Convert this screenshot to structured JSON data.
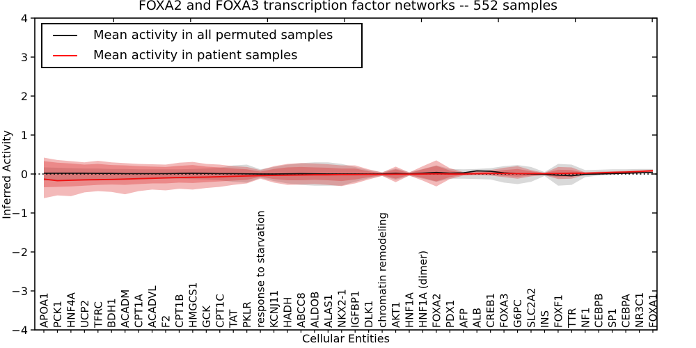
{
  "figure": {
    "title": "FOXA2 and FOXA3 transcription factor networks -- 552 samples",
    "xlabel": "Cellular Entities",
    "ylabel": "Inferred Activity",
    "legend": [
      {
        "label": "Mean activity in all permuted samples",
        "color": "#000000"
      },
      {
        "label": "Mean activity in patient samples",
        "color": "#ff0000"
      }
    ]
  },
  "chart_data": {
    "type": "line",
    "title": "FOXA2 and FOXA3 transcription factor networks -- 552 samples",
    "xlabel": "Cellular Entities",
    "ylabel": "Inferred Activity",
    "ylim": [
      -4,
      4
    ],
    "yticks": [
      4,
      3,
      2,
      1,
      0,
      -1,
      -2,
      -3,
      -4
    ],
    "yticklabels": [
      "4",
      "3",
      "2",
      "1",
      "0",
      "−1",
      "−2",
      "−3",
      "−4"
    ],
    "grid": false,
    "legend_position": "upper left",
    "zero_line": {
      "y": 0,
      "style": "dotted",
      "color": "#000000"
    },
    "band_colors": {
      "patient": "rgba(217,38,38,0.32)",
      "permuted": "rgba(128,128,128,0.30)"
    },
    "categories": [
      "APOA1",
      "PCK1",
      "HNF4A",
      "UCP2",
      "TFRC",
      "BDH1",
      "ACADM",
      "CPT1A",
      "ACADVL",
      "F2",
      "CPT1B",
      "HMGCS1",
      "GCK",
      "CPT1C",
      "TAT",
      "PKLR",
      "response to starvation",
      "KCNJ11",
      "HADH",
      "ABCC8",
      "ALDOB",
      "ALAS1",
      "NKX2-1",
      "IGFBP1",
      "DLK1",
      "chromatin remodeling",
      "AKT1",
      "HNF1A",
      "HNF1A (dimer)",
      "FOXA2",
      "PDX1",
      "AFP",
      "ALB",
      "CREB1",
      "FOXA3",
      "G6PC",
      "SLC2A2",
      "INS",
      "FOXF1",
      "TTR",
      "NF1",
      "CEBPB",
      "SP1",
      "CEBPA",
      "NR3C1",
      "FOXA1"
    ],
    "series": [
      {
        "name": "Mean activity in all permuted samples",
        "type": "line",
        "color": "#000000",
        "values": [
          0.02,
          0.02,
          0.02,
          0.02,
          0.015,
          0.015,
          0.01,
          0.01,
          0.01,
          0.01,
          0.015,
          0.02,
          0.015,
          0.01,
          0.01,
          0.005,
          0.0,
          0.0,
          0.005,
          0.01,
          0.005,
          0.0,
          0.0,
          0.0,
          0.0,
          0.0,
          0.015,
          0.0,
          0.02,
          0.04,
          0.02,
          0.03,
          0.08,
          0.07,
          0.03,
          0.01,
          0.0,
          -0.01,
          -0.03,
          -0.045,
          -0.01,
          0.0,
          0.01,
          0.02,
          0.03,
          0.04
        ]
      },
      {
        "name": "Mean activity in patient samples",
        "type": "line",
        "color": "#ff0000",
        "values": [
          -0.13,
          -0.17,
          -0.16,
          -0.15,
          -0.145,
          -0.14,
          -0.13,
          -0.12,
          -0.11,
          -0.1,
          -0.09,
          -0.085,
          -0.08,
          -0.07,
          -0.06,
          -0.05,
          -0.04,
          -0.035,
          -0.03,
          -0.025,
          -0.02,
          -0.02,
          -0.015,
          -0.015,
          -0.01,
          -0.01,
          -0.005,
          -0.005,
          0.0,
          0.005,
          0.0,
          0.0,
          0.01,
          0.015,
          0.015,
          0.01,
          0.01,
          0.01,
          0.015,
          0.02,
          0.02,
          0.03,
          0.04,
          0.05,
          0.065,
          0.085
        ]
      },
      {
        "name": "permuted samples band",
        "type": "band",
        "color": "gray",
        "upper": [
          0.17,
          0.16,
          0.15,
          0.14,
          0.14,
          0.13,
          0.13,
          0.12,
          0.12,
          0.12,
          0.12,
          0.13,
          0.14,
          0.16,
          0.22,
          0.24,
          0.12,
          0.18,
          0.24,
          0.28,
          0.3,
          0.3,
          0.26,
          0.18,
          0.1,
          0.05,
          0.14,
          0.05,
          0.13,
          0.22,
          0.13,
          0.12,
          0.13,
          0.15,
          0.2,
          0.23,
          0.18,
          0.05,
          0.26,
          0.24,
          0.1,
          0.11,
          0.12,
          0.12,
          0.13,
          0.13
        ],
        "lower": [
          -0.17,
          -0.16,
          -0.15,
          -0.14,
          -0.14,
          -0.13,
          -0.13,
          -0.12,
          -0.12,
          -0.12,
          -0.12,
          -0.13,
          -0.14,
          -0.16,
          -0.2,
          -0.22,
          -0.1,
          -0.18,
          -0.24,
          -0.28,
          -0.3,
          -0.3,
          -0.3,
          -0.2,
          -0.11,
          -0.05,
          -0.15,
          -0.05,
          -0.12,
          -0.2,
          -0.12,
          -0.12,
          -0.13,
          -0.14,
          -0.22,
          -0.26,
          -0.2,
          -0.05,
          -0.3,
          -0.28,
          -0.08,
          -0.04,
          -0.02,
          0.0,
          0.02,
          0.03
        ]
      },
      {
        "name": "patient samples outer band",
        "type": "band",
        "color": "red",
        "upper": [
          0.42,
          0.36,
          0.33,
          0.3,
          0.34,
          0.3,
          0.28,
          0.26,
          0.25,
          0.24,
          0.29,
          0.31,
          0.26,
          0.24,
          0.2,
          0.18,
          0.1,
          0.2,
          0.26,
          0.28,
          0.27,
          0.25,
          0.22,
          0.22,
          0.12,
          0.04,
          0.19,
          0.04,
          0.2,
          0.35,
          0.15,
          0.05,
          0.07,
          0.1,
          0.16,
          0.2,
          0.1,
          0.03,
          0.18,
          0.17,
          0.04,
          0.06,
          0.07,
          0.08,
          0.09,
          0.11
        ],
        "lower": [
          -0.62,
          -0.55,
          -0.57,
          -0.47,
          -0.44,
          -0.46,
          -0.52,
          -0.44,
          -0.4,
          -0.42,
          -0.38,
          -0.4,
          -0.36,
          -0.33,
          -0.28,
          -0.24,
          -0.12,
          -0.22,
          -0.28,
          -0.27,
          -0.26,
          -0.28,
          -0.31,
          -0.24,
          -0.14,
          -0.05,
          -0.21,
          -0.04,
          -0.17,
          -0.32,
          -0.13,
          -0.04,
          -0.03,
          -0.04,
          -0.08,
          -0.12,
          -0.06,
          -0.03,
          -0.13,
          -0.12,
          -0.02,
          0.0,
          0.01,
          0.02,
          0.03,
          0.05
        ]
      },
      {
        "name": "patient samples inner band",
        "type": "band",
        "color": "red",
        "upper": [
          0.33,
          0.29,
          0.27,
          0.24,
          0.26,
          0.23,
          0.22,
          0.2,
          0.19,
          0.18,
          0.21,
          0.23,
          0.19,
          0.17,
          0.14,
          0.12,
          0.06,
          0.13,
          0.17,
          0.18,
          0.17,
          0.16,
          0.14,
          0.14,
          0.07,
          0.025,
          0.12,
          0.025,
          0.12,
          0.21,
          0.09,
          0.03,
          0.04,
          0.06,
          0.1,
          0.13,
          0.07,
          0.02,
          0.11,
          0.1,
          0.03,
          0.04,
          0.05,
          0.06,
          0.07,
          0.09
        ],
        "lower": [
          -0.34,
          -0.33,
          -0.32,
          -0.3,
          -0.28,
          -0.27,
          -0.28,
          -0.26,
          -0.24,
          -0.24,
          -0.22,
          -0.23,
          -0.21,
          -0.19,
          -0.17,
          -0.15,
          -0.07,
          -0.13,
          -0.16,
          -0.16,
          -0.15,
          -0.16,
          -0.18,
          -0.14,
          -0.08,
          -0.03,
          -0.12,
          -0.025,
          -0.1,
          -0.19,
          -0.08,
          -0.02,
          -0.015,
          -0.02,
          -0.05,
          -0.07,
          -0.04,
          -0.02,
          -0.08,
          -0.07,
          -0.01,
          0.01,
          0.02,
          0.03,
          0.04,
          0.06
        ]
      }
    ]
  }
}
